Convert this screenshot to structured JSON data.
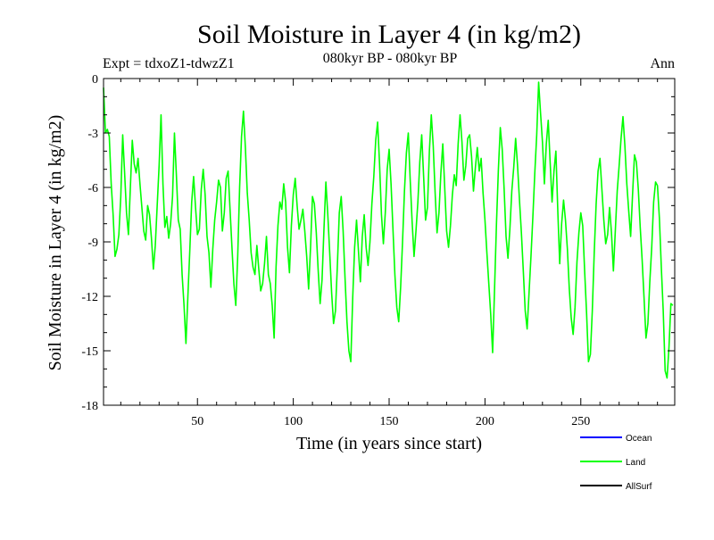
{
  "chart_data": {
    "type": "line",
    "title": "Soil Moisture in Layer 4 (in kg/m2)",
    "subtitle": "080kyr BP - 080kyr BP",
    "experiment": "Expt = tdxoZ1-tdwzZ1",
    "season": "Ann",
    "xlabel": "Time (in years since start)",
    "ylabel": "Soil Moisture in Layer 4 (in kg/m2)",
    "xlim": [
      1,
      299
    ],
    "ylim": [
      -18,
      0
    ],
    "xticks": [
      50,
      100,
      150,
      200,
      250
    ],
    "yticks": [
      0,
      -3,
      -6,
      -9,
      -12,
      -15,
      -18
    ],
    "ytick_labels": [
      "0",
      "-3",
      "-6",
      "-9",
      "-12",
      "-15",
      "-18"
    ],
    "legend_position": "bottom-right, below axes",
    "series": [
      {
        "name": "Ocean",
        "color": "#0000ff",
        "values": []
      },
      {
        "name": "Land",
        "color": "#00ff00",
        "x_start": 1,
        "x_step": 1,
        "values": [
          -0.5,
          -3.0,
          -2.8,
          -3.2,
          -5.8,
          -7.5,
          -9.8,
          -9.4,
          -8.6,
          -6.5,
          -3.1,
          -5.2,
          -7.4,
          -8.6,
          -6.0,
          -3.4,
          -4.7,
          -5.2,
          -4.4,
          -5.8,
          -7.1,
          -8.4,
          -8.9,
          -7.0,
          -7.5,
          -8.8,
          -10.5,
          -9.2,
          -7.0,
          -4.8,
          -2.0,
          -5.8,
          -8.2,
          -7.6,
          -8.8,
          -8.0,
          -6.5,
          -3.0,
          -5.3,
          -7.8,
          -8.3,
          -10.8,
          -12.5,
          -14.6,
          -12.0,
          -9.5,
          -6.8,
          -5.4,
          -7.1,
          -8.6,
          -8.3,
          -6.1,
          -5.0,
          -6.4,
          -8.7,
          -9.6,
          -11.5,
          -9.4,
          -7.8,
          -6.8,
          -5.6,
          -6.0,
          -8.4,
          -7.4,
          -5.5,
          -5.1,
          -7.2,
          -9.3,
          -11.3,
          -12.5,
          -9.8,
          -6.0,
          -3.2,
          -1.8,
          -3.8,
          -6.3,
          -7.8,
          -9.6,
          -10.4,
          -10.8,
          -9.2,
          -10.5,
          -11.7,
          -11.3,
          -10.2,
          -8.7,
          -10.8,
          -11.3,
          -12.5,
          -14.3,
          -10.4,
          -8.1,
          -6.8,
          -7.2,
          -5.8,
          -6.8,
          -9.3,
          -10.7,
          -8.1,
          -6.4,
          -5.5,
          -7.0,
          -8.3,
          -7.8,
          -7.2,
          -8.4,
          -9.8,
          -11.6,
          -9.3,
          -6.5,
          -6.9,
          -8.5,
          -10.6,
          -12.4,
          -11.1,
          -8.3,
          -5.7,
          -7.5,
          -9.6,
          -11.8,
          -13.5,
          -12.8,
          -10.3,
          -7.4,
          -6.5,
          -8.4,
          -11.0,
          -13.4,
          -15.0,
          -15.6,
          -12.1,
          -9.3,
          -7.8,
          -9.5,
          -11.2,
          -8.7,
          -7.5,
          -9.3,
          -10.3,
          -9.0,
          -6.9,
          -5.4,
          -3.4,
          -2.4,
          -4.7,
          -7.5,
          -9.1,
          -7.4,
          -5.0,
          -3.9,
          -5.8,
          -8.3,
          -10.8,
          -12.6,
          -13.4,
          -11.5,
          -9.0,
          -6.2,
          -4.1,
          -3.0,
          -5.6,
          -7.9,
          -9.8,
          -8.4,
          -6.8,
          -4.6,
          -3.1,
          -5.4,
          -7.8,
          -7.1,
          -4.0,
          -2.0,
          -3.7,
          -6.3,
          -8.5,
          -7.4,
          -5.2,
          -3.6,
          -6.0,
          -8.4,
          -9.3,
          -8.1,
          -6.4,
          -5.3,
          -5.9,
          -3.6,
          -2.0,
          -3.5,
          -5.6,
          -4.8,
          -3.3,
          -3.1,
          -4.3,
          -6.2,
          -4.9,
          -3.8,
          -5.1,
          -4.4,
          -6.3,
          -7.8,
          -9.6,
          -11.3,
          -13.0,
          -15.1,
          -11.6,
          -8.0,
          -5.0,
          -2.7,
          -3.9,
          -6.1,
          -8.7,
          -9.9,
          -8.3,
          -6.2,
          -4.9,
          -3.3,
          -4.8,
          -6.7,
          -8.5,
          -10.6,
          -12.8,
          -13.8,
          -11.8,
          -9.8,
          -7.6,
          -5.2,
          -3.1,
          -0.2,
          -1.9,
          -3.5,
          -5.8,
          -3.6,
          -2.3,
          -4.6,
          -6.8,
          -5.1,
          -4.0,
          -7.3,
          -10.2,
          -8.0,
          -6.7,
          -7.8,
          -9.4,
          -11.6,
          -13.2,
          -14.1,
          -12.6,
          -10.1,
          -8.5,
          -7.4,
          -8.1,
          -10.6,
          -12.9,
          -15.6,
          -15.2,
          -12.8,
          -9.6,
          -6.9,
          -5.1,
          -4.4,
          -6.1,
          -7.8,
          -9.1,
          -8.6,
          -7.1,
          -8.5,
          -10.6,
          -8.4,
          -6.2,
          -4.8,
          -3.3,
          -2.1,
          -3.7,
          -5.8,
          -7.3,
          -8.7,
          -6.4,
          -4.2,
          -4.6,
          -6.1,
          -8.2,
          -10.0,
          -12.1,
          -14.3,
          -13.5,
          -11.2,
          -9.3,
          -6.8,
          -5.7,
          -5.9,
          -7.7,
          -10.4,
          -12.8,
          -16.1,
          -16.5,
          -14.8,
          -12.4,
          -12.5
        ]
      },
      {
        "name": "AllSurf",
        "color": "#000000",
        "values": []
      }
    ]
  }
}
